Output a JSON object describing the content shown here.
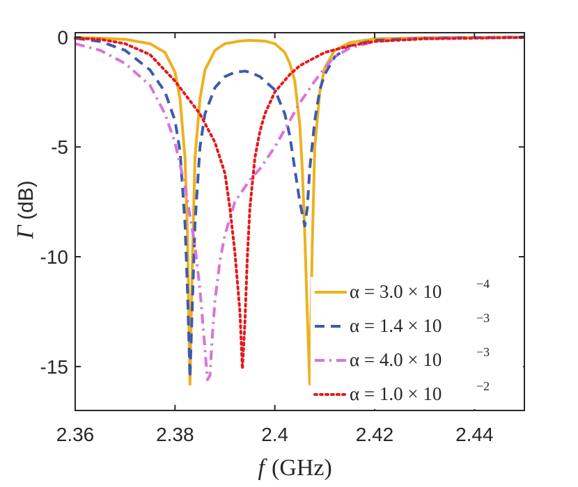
{
  "chart_data": {
    "type": "line",
    "title": "",
    "xlabel": "f",
    "xlabel_unit": "(GHz)",
    "ylabel": "Γ",
    "ylabel_unit": "(dB)",
    "xlim": [
      2.36,
      2.45
    ],
    "ylim": [
      -17,
      0.2
    ],
    "xticks": [
      2.36,
      2.38,
      2.4,
      2.42,
      2.44
    ],
    "xtick_labels": [
      "2.36",
      "2.38",
      "2.4",
      "2.42",
      "2.44"
    ],
    "yticks": [
      0,
      -5,
      -10,
      -15
    ],
    "ytick_labels": [
      "0",
      "-5",
      "-10",
      "-15"
    ],
    "grid": false,
    "legend_position": "bottom-right",
    "series": [
      {
        "name": "α = 3.0 × 10^−4",
        "label_main": "α = 3.0 × 10",
        "label_exp": "−4",
        "color": "#EDB120",
        "dash": "solid",
        "x": [
          2.36,
          2.365,
          2.37,
          2.375,
          2.378,
          2.38,
          2.381,
          2.382,
          2.3825,
          2.383,
          2.3835,
          2.384,
          2.385,
          2.386,
          2.388,
          2.39,
          2.393,
          2.395,
          2.398,
          2.4,
          2.402,
          2.403,
          2.404,
          2.405,
          2.4055,
          2.406,
          2.4065,
          2.407,
          2.4075,
          2.408,
          2.409,
          2.41,
          2.412,
          2.415,
          2.42,
          2.43,
          2.45
        ],
        "y": [
          -0.02,
          -0.05,
          -0.1,
          -0.3,
          -0.7,
          -1.6,
          -2.8,
          -5.5,
          -9.0,
          -15.8,
          -10.0,
          -5.5,
          -2.8,
          -1.5,
          -0.6,
          -0.3,
          -0.18,
          -0.15,
          -0.18,
          -0.3,
          -0.7,
          -1.2,
          -2.0,
          -4.0,
          -6.0,
          -9.0,
          -12.5,
          -15.8,
          -9.5,
          -5.0,
          -2.5,
          -1.4,
          -0.6,
          -0.25,
          -0.08,
          -0.03,
          0.0
        ]
      },
      {
        "name": "α = 1.4 × 10^−3",
        "label_main": "α = 1.4 × 10",
        "label_exp": "−3",
        "color": "#3B5BAD",
        "dash": "dashed",
        "x": [
          2.36,
          2.365,
          2.37,
          2.375,
          2.378,
          2.38,
          2.381,
          2.382,
          2.3825,
          2.383,
          2.3835,
          2.384,
          2.385,
          2.386,
          2.388,
          2.39,
          2.392,
          2.394,
          2.395,
          2.397,
          2.4,
          2.402,
          2.403,
          2.404,
          2.405,
          2.406,
          2.4065,
          2.407,
          2.408,
          2.409,
          2.41,
          2.412,
          2.415,
          2.42,
          2.43,
          2.45
        ],
        "y": [
          -0.05,
          -0.2,
          -0.6,
          -1.5,
          -2.5,
          -3.8,
          -5.2,
          -8.5,
          -11.5,
          -15.5,
          -12.0,
          -8.5,
          -5.0,
          -3.5,
          -2.3,
          -1.8,
          -1.6,
          -1.55,
          -1.6,
          -1.8,
          -2.4,
          -3.5,
          -4.5,
          -6.0,
          -7.5,
          -8.6,
          -7.8,
          -6.0,
          -3.8,
          -2.4,
          -1.7,
          -0.9,
          -0.4,
          -0.15,
          -0.05,
          0.0
        ]
      },
      {
        "name": "α = 4.0 × 10^−3",
        "label_main": "α = 4.0 × 10",
        "label_exp": "−3",
        "color": "#D974D6",
        "dash": "dashdot",
        "x": [
          2.36,
          2.365,
          2.37,
          2.375,
          2.378,
          2.38,
          2.382,
          2.384,
          2.385,
          2.386,
          2.3865,
          2.387,
          2.3875,
          2.388,
          2.389,
          2.39,
          2.392,
          2.395,
          2.397,
          2.4,
          2.403,
          2.405,
          2.408,
          2.41,
          2.412,
          2.415,
          2.42,
          2.43,
          2.45
        ],
        "y": [
          -0.3,
          -0.6,
          -1.2,
          -2.2,
          -3.5,
          -4.8,
          -6.8,
          -9.5,
          -11.5,
          -14.2,
          -15.6,
          -15.4,
          -13.5,
          -12.0,
          -10.2,
          -9.0,
          -7.5,
          -6.5,
          -6.0,
          -5.0,
          -3.8,
          -3.0,
          -2.0,
          -1.4,
          -0.9,
          -0.5,
          -0.2,
          -0.06,
          -0.01
        ]
      },
      {
        "name": "α = 1.0 × 10^−2",
        "label_main": "α = 1.0 × 10",
        "label_exp": "−2",
        "color": "#E41A1C",
        "dash": "dotted",
        "x": [
          2.36,
          2.365,
          2.37,
          2.375,
          2.38,
          2.385,
          2.388,
          2.39,
          2.391,
          2.392,
          2.393,
          2.3935,
          2.394,
          2.3945,
          2.395,
          2.396,
          2.397,
          2.398,
          2.4,
          2.403,
          2.405,
          2.41,
          2.415,
          2.42,
          2.43,
          2.45
        ],
        "y": [
          -0.05,
          -0.1,
          -0.3,
          -0.8,
          -2.0,
          -3.5,
          -4.8,
          -6.2,
          -7.8,
          -9.8,
          -12.5,
          -15.1,
          -13.0,
          -10.0,
          -7.8,
          -5.5,
          -4.3,
          -3.5,
          -2.5,
          -1.7,
          -1.3,
          -0.7,
          -0.4,
          -0.2,
          -0.08,
          -0.02
        ]
      }
    ]
  }
}
